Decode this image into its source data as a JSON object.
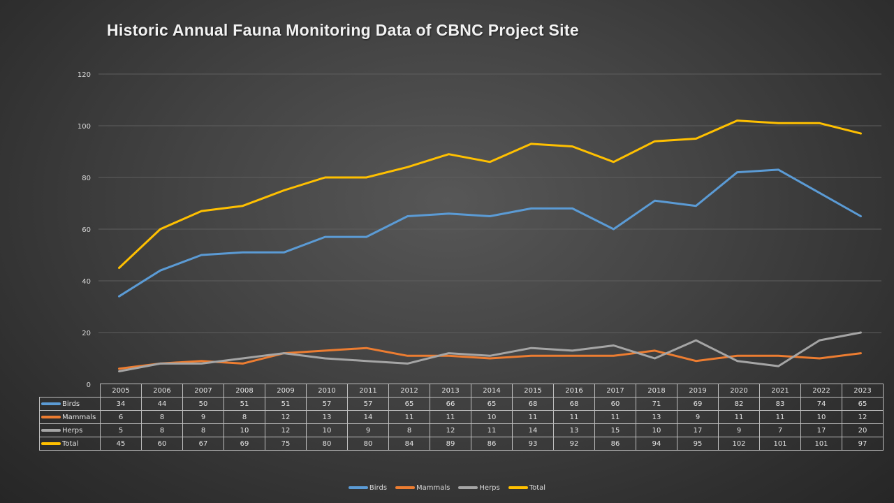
{
  "chart_data": {
    "type": "line",
    "title": "Historic Annual Fauna Monitoring Data of CBNC Project Site",
    "xlabel": "",
    "ylabel": "",
    "ylim": [
      0,
      120
    ],
    "yticks": [
      "0",
      "20",
      "40",
      "60",
      "80",
      "100",
      "120"
    ],
    "grid": true,
    "legend_position": "bottom",
    "categories": [
      "2005",
      "2006",
      "2007",
      "2008",
      "2009",
      "2010",
      "2011",
      "2012",
      "2013",
      "2014",
      "2015",
      "2016",
      "2017",
      "2018",
      "2019",
      "2020",
      "2021",
      "2022",
      "2023"
    ],
    "series": [
      {
        "name": "Birds",
        "color": "#5b9bd5",
        "values": [
          34,
          44,
          50,
          51,
          51,
          57,
          57,
          65,
          66,
          65,
          68,
          68,
          60,
          71,
          69,
          82,
          83,
          74,
          65
        ]
      },
      {
        "name": "Mammals",
        "color": "#ed7d31",
        "values": [
          6,
          8,
          9,
          8,
          12,
          13,
          14,
          11,
          11,
          10,
          11,
          11,
          11,
          13,
          9,
          11,
          11,
          10,
          12
        ]
      },
      {
        "name": "Herps",
        "color": "#a5a5a5",
        "values": [
          5,
          8,
          8,
          10,
          12,
          10,
          9,
          8,
          12,
          11,
          14,
          13,
          15,
          10,
          17,
          9,
          7,
          17,
          20
        ]
      },
      {
        "name": "Total",
        "color": "#ffc000",
        "values": [
          45,
          60,
          67,
          69,
          75,
          80,
          80,
          84,
          89,
          86,
          93,
          92,
          86,
          94,
          95,
          102,
          101,
          101,
          97
        ]
      }
    ],
    "data_table": true
  }
}
